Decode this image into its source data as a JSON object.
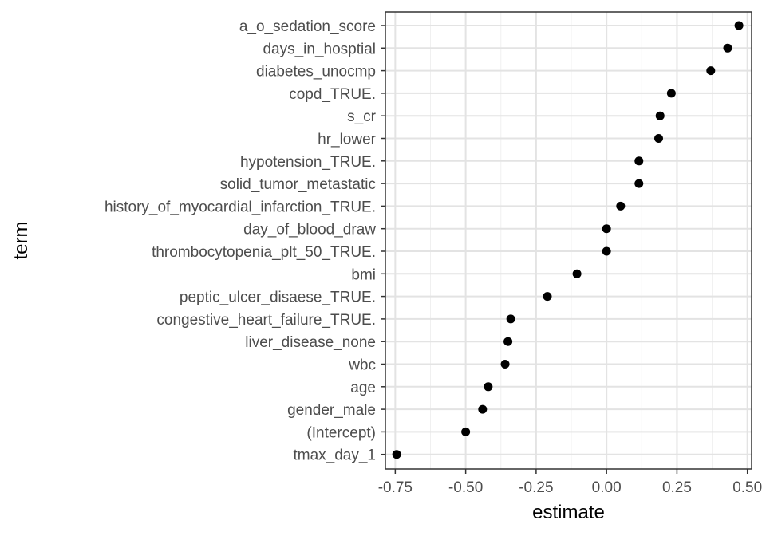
{
  "chart_data": {
    "type": "scatter",
    "xlabel": "estimate",
    "ylabel": "term",
    "xlim": [
      -0.785,
      0.515
    ],
    "x_ticks": [
      -0.75,
      -0.5,
      -0.25,
      0.0,
      0.25,
      0.5
    ],
    "x_tick_labels": [
      "-0.75",
      "-0.50",
      "-0.25",
      "0.00",
      "0.25",
      "0.50"
    ],
    "grid": true,
    "point_color": "#000000",
    "points": [
      {
        "term": "a_o_sedation_score",
        "estimate": 0.47
      },
      {
        "term": "days_in_hosptial",
        "estimate": 0.43
      },
      {
        "term": "diabetes_unocmp",
        "estimate": 0.37
      },
      {
        "term": "copd_TRUE.",
        "estimate": 0.23
      },
      {
        "term": "s_cr",
        "estimate": 0.19
      },
      {
        "term": "hr_lower",
        "estimate": 0.185
      },
      {
        "term": "hypotension_TRUE.",
        "estimate": 0.115
      },
      {
        "term": "solid_tumor_metastatic",
        "estimate": 0.115
      },
      {
        "term": "history_of_myocardial_infarction_TRUE.",
        "estimate": 0.05
      },
      {
        "term": "day_of_blood_draw",
        "estimate": 0.0
      },
      {
        "term": "thrombocytopenia_plt_50_TRUE.",
        "estimate": 0.0
      },
      {
        "term": "bmi",
        "estimate": -0.105
      },
      {
        "term": "peptic_ulcer_disaese_TRUE.",
        "estimate": -0.21
      },
      {
        "term": "congestive_heart_failure_TRUE.",
        "estimate": -0.34
      },
      {
        "term": "liver_disease_none",
        "estimate": -0.35
      },
      {
        "term": "wbc",
        "estimate": -0.36
      },
      {
        "term": "age",
        "estimate": -0.42
      },
      {
        "term": "gender_male",
        "estimate": -0.44
      },
      {
        "term": "(Intercept)",
        "estimate": -0.5
      },
      {
        "term": "tmax_day_1",
        "estimate": -0.745
      }
    ]
  }
}
